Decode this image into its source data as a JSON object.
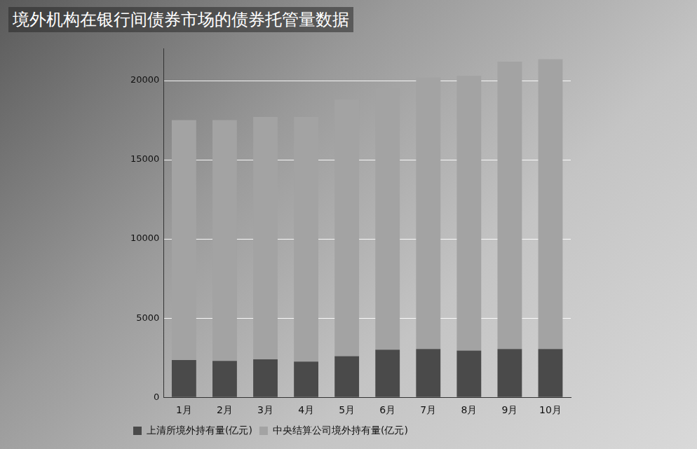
{
  "chart_data": {
    "type": "bar",
    "title": "境外机构在银行间债券市场的债券托管量数据",
    "categories": [
      "1月",
      "2月",
      "3月",
      "4月",
      "5月",
      "6月",
      "7月",
      "8月",
      "9月",
      "10月"
    ],
    "series": [
      {
        "name": "上清所境外持有量(亿元)",
        "color": "#4a4a4a",
        "values": [
          2350,
          2300,
          2400,
          2250,
          2600,
          3000,
          3050,
          2950,
          3050,
          3050
        ]
      },
      {
        "name": "中央结算公司境外持有量(亿元)",
        "color": "#a3a3a3",
        "values": [
          15150,
          15200,
          15300,
          15450,
          16200,
          16500,
          17150,
          17350,
          18150,
          18300
        ]
      }
    ],
    "ylim": [
      0,
      22000
    ],
    "yticks": [
      0,
      5000,
      10000,
      15000,
      20000
    ],
    "stacked": true,
    "grid": true,
    "legend": "bottom"
  }
}
